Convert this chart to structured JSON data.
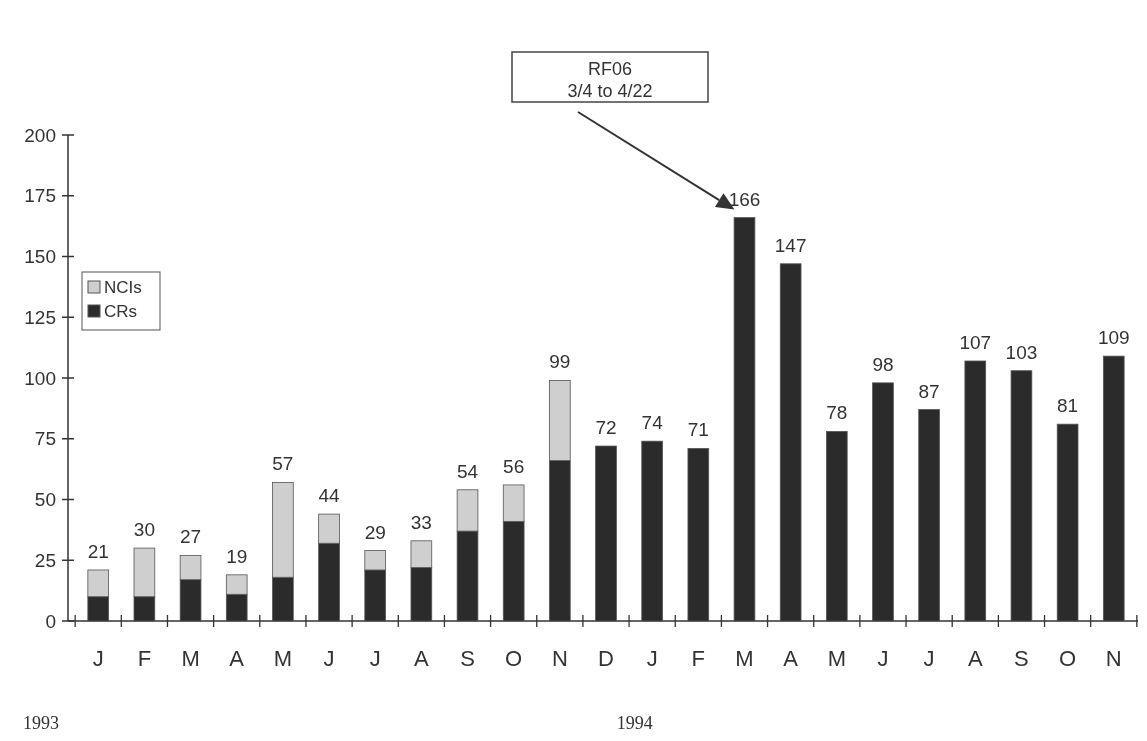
{
  "chart_data": {
    "type": "bar",
    "stacked": true,
    "categories": [
      "J",
      "F",
      "M",
      "A",
      "M",
      "J",
      "J",
      "A",
      "S",
      "O",
      "N",
      "D",
      "J",
      "F",
      "M",
      "A",
      "M",
      "J",
      "J",
      "A",
      "S",
      "O",
      "N"
    ],
    "series": [
      {
        "name": "CRs",
        "color": "#2b2b2b",
        "values": [
          10,
          10,
          17,
          11,
          18,
          32,
          21,
          22,
          37,
          41,
          66,
          72,
          74,
          71,
          166,
          147,
          78,
          98,
          87,
          107,
          103,
          81,
          109
        ]
      },
      {
        "name": "NCIs",
        "color": "#cfcfcf",
        "values": [
          11,
          20,
          10,
          8,
          39,
          12,
          8,
          11,
          17,
          15,
          33,
          0,
          0,
          0,
          0,
          0,
          0,
          0,
          0,
          0,
          0,
          0,
          0
        ]
      }
    ],
    "totals": [
      "21",
      "30",
      "27",
      "19",
      "57",
      "44",
      "29",
      "33",
      "54",
      "56",
      "99",
      "72",
      "74",
      "71",
      "166",
      "147",
      "78",
      "98",
      "87",
      "107",
      "103",
      "81",
      "109"
    ],
    "ylim": [
      0,
      200
    ],
    "yticks": [
      0,
      25,
      50,
      75,
      100,
      125,
      150,
      175,
      200
    ],
    "legend": "top left",
    "annotations": [
      "RF06\n3/4 to 4/22",
      "1993",
      "1994"
    ]
  }
}
